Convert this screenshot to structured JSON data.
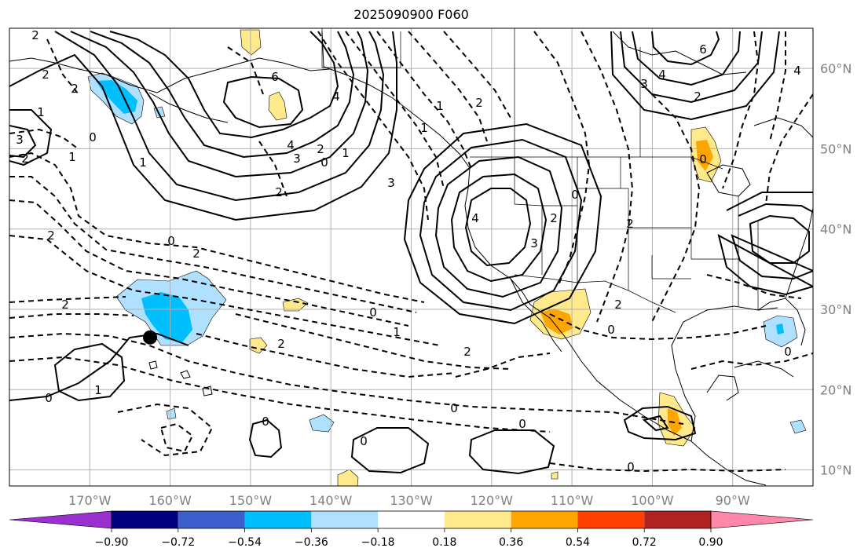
{
  "title": "2025090900 F060",
  "map": {
    "lon_range": [
      -180,
      -80
    ],
    "lat_range": [
      8,
      65
    ],
    "lon_ticks": [
      "170°W",
      "160°W",
      "150°W",
      "140°W",
      "130°W",
      "120°W",
      "110°W",
      "100°W",
      "90°W"
    ],
    "lat_ticks": [
      "60°N",
      "50°N",
      "40°N",
      "30°N",
      "20°N",
      "10°N"
    ],
    "gridlines": true,
    "marker": {
      "label": "station-dot",
      "lon": -162.5,
      "lat": 26.5,
      "color": "#000000"
    },
    "contour_labels": [
      "2",
      "2",
      "2",
      "1",
      "3",
      "2",
      "1",
      "0",
      "6",
      "4",
      "3",
      "2",
      "0",
      "1",
      "2",
      "3",
      "4",
      "1",
      "4",
      "2",
      "0",
      "2",
      "3",
      "0",
      "2",
      "1",
      "2",
      "6",
      "4",
      "3",
      "2",
      "0",
      "4",
      "1",
      "2",
      "2",
      "0",
      "1",
      "2",
      "2",
      "0",
      "2",
      "0",
      "0",
      "0",
      "0",
      "0",
      "0",
      "0",
      "1"
    ]
  },
  "colorbar": {
    "levels": [
      "−0.90",
      "−0.72",
      "−0.54",
      "−0.36",
      "−0.18",
      "0.18",
      "0.36",
      "0.54",
      "0.72",
      "0.90"
    ],
    "colors": [
      "#9b30d0",
      "#000080",
      "#3a5fcd",
      "#00bfff",
      "#b0e0ff",
      "#ffffff",
      "#ffe98a",
      "#ffa500",
      "#ff4000",
      "#b22222",
      "#ff88aa"
    ]
  }
}
